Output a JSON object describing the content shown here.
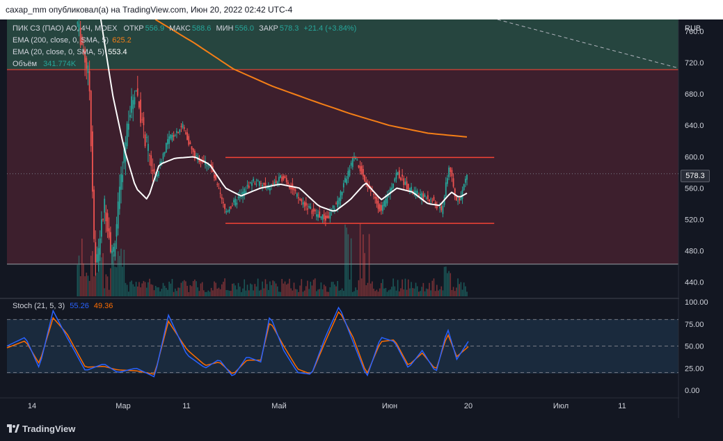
{
  "header": {
    "text": "caxap_mm опубликовал(а) на TradingView.com, Июн 20, 2022 02:42 UTC-4"
  },
  "legend": {
    "title": "ПИК СЗ (ПАО) АО, 4Ч, MOEX",
    "open_label": "ОТКР",
    "open": "556.9",
    "high_label": "МАКС",
    "high": "588.6",
    "low_label": "МИН",
    "low": "556.0",
    "close_label": "ЗАКР",
    "close": "578.3",
    "change": "+21.4 (+3.84%)",
    "ema200_label": "EMA (200, close, 0, SMA, 5)",
    "ema200_value": "625.2",
    "ema20_label": "EMA (20, close, 0, SMA, 5)",
    "ema20_value": "553.4",
    "volume_label": "Объём",
    "volume_value": "341.774K",
    "stoch_label": "Stoch (21, 5, 3)",
    "stoch_k": "55.26",
    "stoch_d": "49.36"
  },
  "colors": {
    "up": "#26a69a",
    "down": "#ef5350",
    "ema200": "#f57f17",
    "ema20": "#ffffff",
    "stoch_k": "#2962ff",
    "stoch_d": "#ff6d00",
    "zone_upper": "#26453f",
    "zone_red": "#3d1f2d",
    "line_red": "#f44336"
  },
  "price_tag": "578.3",
  "branding": "TradingView",
  "chart_data": {
    "type": "candlestick",
    "price_axis": {
      "unit": "RUB",
      "ticks": [
        "760.0",
        "720.0",
        "680.0",
        "640.0",
        "600.0",
        "560.0",
        "520.0",
        "480.0",
        "440.0"
      ],
      "range": [
        422,
        775
      ]
    },
    "stoch_axis": {
      "ticks": [
        "100.00",
        "75.00",
        "50.00",
        "25.00",
        "0.00"
      ],
      "range": [
        0,
        100
      ],
      "bands": [
        80,
        50,
        20
      ]
    },
    "time_axis": {
      "ticks": [
        "14",
        "Мар",
        "11",
        "Май",
        "Июн",
        "20",
        "Июл",
        "11"
      ]
    },
    "last_close": 578.3,
    "zones": [
      {
        "name": "upper-zone",
        "from": 711,
        "to": 775
      },
      {
        "name": "red-zone",
        "from": 463,
        "to": 711
      }
    ],
    "levels": [
      {
        "name": "resistance",
        "price": 599
      },
      {
        "name": "support",
        "price": 515
      }
    ],
    "trendline": {
      "from_price": 775,
      "to_price": 713
    },
    "price_path": [
      {
        "t": 0.0,
        "p": 770
      },
      {
        "t": 0.03,
        "p": 700
      },
      {
        "t": 0.045,
        "p": 455
      },
      {
        "t": 0.07,
        "p": 540
      },
      {
        "t": 0.09,
        "p": 470
      },
      {
        "t": 0.11,
        "p": 560
      },
      {
        "t": 0.13,
        "p": 650
      },
      {
        "t": 0.15,
        "p": 690
      },
      {
        "t": 0.17,
        "p": 630
      },
      {
        "t": 0.2,
        "p": 570
      },
      {
        "t": 0.23,
        "p": 620
      },
      {
        "t": 0.27,
        "p": 640
      },
      {
        "t": 0.3,
        "p": 600
      },
      {
        "t": 0.34,
        "p": 590
      },
      {
        "t": 0.38,
        "p": 530
      },
      {
        "t": 0.41,
        "p": 545
      },
      {
        "t": 0.45,
        "p": 570
      },
      {
        "t": 0.49,
        "p": 560
      },
      {
        "t": 0.53,
        "p": 575
      },
      {
        "t": 0.57,
        "p": 545
      },
      {
        "t": 0.61,
        "p": 528
      },
      {
        "t": 0.64,
        "p": 520
      },
      {
        "t": 0.67,
        "p": 545
      },
      {
        "t": 0.71,
        "p": 600
      },
      {
        "t": 0.74,
        "p": 570
      },
      {
        "t": 0.78,
        "p": 530
      },
      {
        "t": 0.82,
        "p": 580
      },
      {
        "t": 0.85,
        "p": 560
      },
      {
        "t": 0.88,
        "p": 550
      },
      {
        "t": 0.91,
        "p": 545
      },
      {
        "t": 0.935,
        "p": 530
      },
      {
        "t": 0.955,
        "p": 590
      },
      {
        "t": 0.97,
        "p": 545
      },
      {
        "t": 0.985,
        "p": 550
      },
      {
        "t": 1.0,
        "p": 578.3
      }
    ],
    "ema200_path": [
      {
        "t": 0.2,
        "p": 775
      },
      {
        "t": 0.3,
        "p": 745
      },
      {
        "t": 0.4,
        "p": 712
      },
      {
        "t": 0.5,
        "p": 690
      },
      {
        "t": 0.6,
        "p": 672
      },
      {
        "t": 0.7,
        "p": 655
      },
      {
        "t": 0.8,
        "p": 640
      },
      {
        "t": 0.9,
        "p": 630
      },
      {
        "t": 1.0,
        "p": 625.2
      }
    ],
    "ema20_path": [
      {
        "t": 0.06,
        "p": 775
      },
      {
        "t": 0.09,
        "p": 680
      },
      {
        "t": 0.12,
        "p": 610
      },
      {
        "t": 0.15,
        "p": 560
      },
      {
        "t": 0.18,
        "p": 545
      },
      {
        "t": 0.21,
        "p": 590
      },
      {
        "t": 0.25,
        "p": 598
      },
      {
        "t": 0.3,
        "p": 600
      },
      {
        "t": 0.34,
        "p": 590
      },
      {
        "t": 0.38,
        "p": 560
      },
      {
        "t": 0.42,
        "p": 550
      },
      {
        "t": 0.47,
        "p": 560
      },
      {
        "t": 0.52,
        "p": 565
      },
      {
        "t": 0.57,
        "p": 560
      },
      {
        "t": 0.62,
        "p": 537
      },
      {
        "t": 0.66,
        "p": 530
      },
      {
        "t": 0.7,
        "p": 545
      },
      {
        "t": 0.74,
        "p": 567
      },
      {
        "t": 0.78,
        "p": 545
      },
      {
        "t": 0.82,
        "p": 560
      },
      {
        "t": 0.86,
        "p": 555
      },
      {
        "t": 0.9,
        "p": 540
      },
      {
        "t": 0.93,
        "p": 538
      },
      {
        "t": 0.96,
        "p": 555
      },
      {
        "t": 0.98,
        "p": 548
      },
      {
        "t": 1.0,
        "p": 553.4
      }
    ],
    "stoch_k_path": [
      {
        "t": 0.0,
        "v": 50
      },
      {
        "t": 0.04,
        "v": 60
      },
      {
        "t": 0.07,
        "v": 25
      },
      {
        "t": 0.1,
        "v": 90
      },
      {
        "t": 0.13,
        "v": 60
      },
      {
        "t": 0.17,
        "v": 22
      },
      {
        "t": 0.21,
        "v": 30
      },
      {
        "t": 0.24,
        "v": 20
      },
      {
        "t": 0.28,
        "v": 25
      },
      {
        "t": 0.32,
        "v": 15
      },
      {
        "t": 0.35,
        "v": 85
      },
      {
        "t": 0.39,
        "v": 40
      },
      {
        "t": 0.43,
        "v": 25
      },
      {
        "t": 0.46,
        "v": 35
      },
      {
        "t": 0.49,
        "v": 15
      },
      {
        "t": 0.52,
        "v": 38
      },
      {
        "t": 0.55,
        "v": 32
      },
      {
        "t": 0.57,
        "v": 85
      },
      {
        "t": 0.6,
        "v": 45
      },
      {
        "t": 0.63,
        "v": 20
      },
      {
        "t": 0.66,
        "v": 18
      },
      {
        "t": 0.69,
        "v": 60
      },
      {
        "t": 0.72,
        "v": 95
      },
      {
        "t": 0.75,
        "v": 55
      },
      {
        "t": 0.78,
        "v": 15
      },
      {
        "t": 0.81,
        "v": 60
      },
      {
        "t": 0.84,
        "v": 55
      },
      {
        "t": 0.87,
        "v": 25
      },
      {
        "t": 0.9,
        "v": 45
      },
      {
        "t": 0.93,
        "v": 20
      },
      {
        "t": 0.955,
        "v": 70
      },
      {
        "t": 0.975,
        "v": 35
      },
      {
        "t": 1.0,
        "v": 55.26
      }
    ],
    "stoch_d_path": [
      {
        "t": 0.0,
        "v": 48
      },
      {
        "t": 0.04,
        "v": 56
      },
      {
        "t": 0.07,
        "v": 30
      },
      {
        "t": 0.1,
        "v": 82
      },
      {
        "t": 0.13,
        "v": 64
      },
      {
        "t": 0.17,
        "v": 26
      },
      {
        "t": 0.21,
        "v": 27
      },
      {
        "t": 0.24,
        "v": 23
      },
      {
        "t": 0.28,
        "v": 22
      },
      {
        "t": 0.32,
        "v": 18
      },
      {
        "t": 0.35,
        "v": 78
      },
      {
        "t": 0.39,
        "v": 46
      },
      {
        "t": 0.43,
        "v": 28
      },
      {
        "t": 0.46,
        "v": 32
      },
      {
        "t": 0.49,
        "v": 18
      },
      {
        "t": 0.52,
        "v": 34
      },
      {
        "t": 0.55,
        "v": 34
      },
      {
        "t": 0.57,
        "v": 78
      },
      {
        "t": 0.6,
        "v": 50
      },
      {
        "t": 0.63,
        "v": 24
      },
      {
        "t": 0.66,
        "v": 18
      },
      {
        "t": 0.69,
        "v": 55
      },
      {
        "t": 0.72,
        "v": 90
      },
      {
        "t": 0.75,
        "v": 60
      },
      {
        "t": 0.78,
        "v": 18
      },
      {
        "t": 0.81,
        "v": 55
      },
      {
        "t": 0.84,
        "v": 57
      },
      {
        "t": 0.87,
        "v": 28
      },
      {
        "t": 0.9,
        "v": 42
      },
      {
        "t": 0.93,
        "v": 23
      },
      {
        "t": 0.955,
        "v": 64
      },
      {
        "t": 0.975,
        "v": 38
      },
      {
        "t": 1.0,
        "v": 49.36
      }
    ]
  }
}
